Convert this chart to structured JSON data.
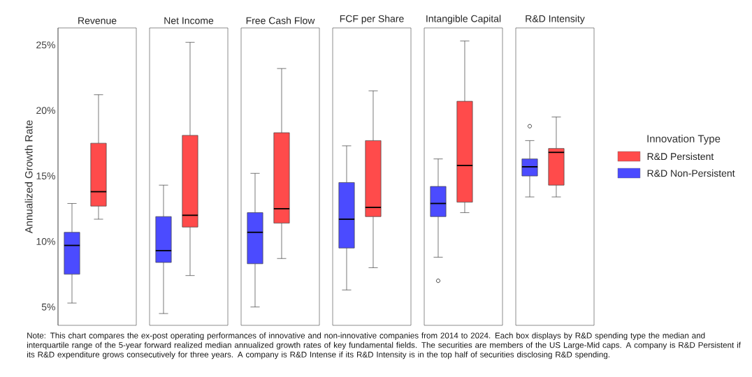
{
  "chart_data": {
    "type": "box",
    "ylabel": "Annualized Growth Rate",
    "legend": "right",
    "legend_title": "Innovation Type",
    "categories": [
      "Revenue",
      "Net Income",
      "Free Cash Flow",
      "FCF per Share",
      "Intangible Capital",
      "R&D Intensity"
    ],
    "ylim": [
      3.6,
      26.3
    ],
    "yticks": [
      {
        "value": 5,
        "label": "5%"
      },
      {
        "value": 10,
        "label": "10%"
      },
      {
        "value": 15,
        "label": "15%"
      },
      {
        "value": 20,
        "label": "20%"
      },
      {
        "value": 25,
        "label": "25%"
      }
    ],
    "annotations": [
      "Note: This chart compares the ex-post operating performances of innovative and non-innovative companies from 2014 to 2024. Each box displays by R&D spending type the median and interquartile range of the 5-year forward realized median annualized growth rates of key fundamental fields. The securities are members of the US Large-Mid caps. A company is R&D Persistent if its R&D expenditure grows consecutively for three years. A company is R&D Intense if its R&D Intensity is in the top half of securities disclosing R&D spending."
    ],
    "series": [
      {
        "name": "R&D Non-Persistent",
        "color": "#4b4bff",
        "boxes": [
          {
            "low": 5.3,
            "q1": 7.5,
            "median": 9.7,
            "q3": 10.7,
            "high": 12.9
          },
          {
            "low": 4.5,
            "q1": 8.4,
            "median": 9.3,
            "q3": 11.9,
            "high": 14.3
          },
          {
            "low": 5.0,
            "q1": 8.3,
            "median": 10.7,
            "q3": 12.2,
            "high": 15.2
          },
          {
            "low": 6.3,
            "q1": 9.5,
            "median": 11.7,
            "q3": 14.5,
            "high": 17.3
          },
          {
            "low": 8.8,
            "q1": 11.9,
            "median": 12.9,
            "q3": 14.2,
            "high": 16.3,
            "outliers": [
              7.0
            ]
          },
          {
            "low": 13.4,
            "q1": 15.0,
            "median": 15.7,
            "q3": 16.3,
            "high": 17.7,
            "outliers": [
              18.8
            ]
          }
        ]
      },
      {
        "name": "R&D Persistent",
        "color": "#ff4b4b",
        "boxes": [
          {
            "low": 11.7,
            "q1": 12.7,
            "median": 13.8,
            "q3": 17.5,
            "high": 21.2
          },
          {
            "low": 7.4,
            "q1": 11.1,
            "median": 12.0,
            "q3": 18.1,
            "high": 25.2
          },
          {
            "low": 8.7,
            "q1": 11.4,
            "median": 12.5,
            "q3": 18.3,
            "high": 23.2
          },
          {
            "low": 8.0,
            "q1": 11.9,
            "median": 12.6,
            "q3": 17.7,
            "high": 21.5
          },
          {
            "low": 12.2,
            "q1": 13.0,
            "median": 15.8,
            "q3": 20.7,
            "high": 25.3
          },
          {
            "low": 13.4,
            "q1": 14.3,
            "median": 16.8,
            "q3": 17.1,
            "high": 19.5
          }
        ]
      }
    ]
  }
}
